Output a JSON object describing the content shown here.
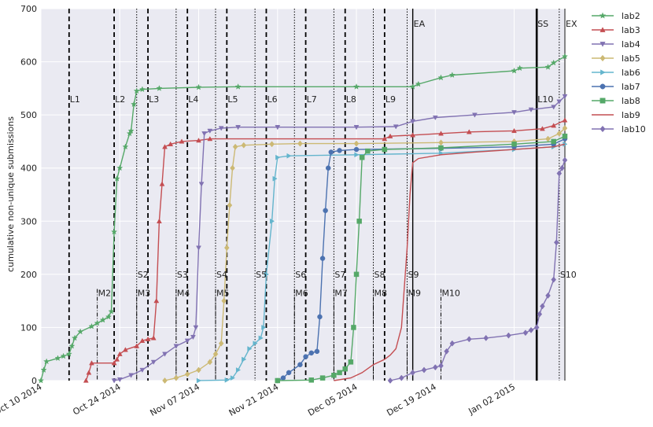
{
  "chart_data": {
    "type": "line",
    "ylabel": "cumulative non-unique submissions",
    "xlim": [
      "2014-10-10",
      "2015-01-11"
    ],
    "ylim": [
      0,
      700
    ],
    "x_ticks": [
      {
        "date": "2014-10-10",
        "label": "Oct 10 2014"
      },
      {
        "date": "2014-10-24",
        "label": "Oct 24 2014"
      },
      {
        "date": "2014-11-07",
        "label": "Nov 07 2014"
      },
      {
        "date": "2014-11-21",
        "label": "Nov 21 2014"
      },
      {
        "date": "2014-12-05",
        "label": "Dec 05 2014"
      },
      {
        "date": "2014-12-19",
        "label": "Dec 19 2014"
      },
      {
        "date": "2015-01-02",
        "label": "Jan 02 2015"
      }
    ],
    "y_ticks": [
      0,
      100,
      200,
      300,
      400,
      500,
      600,
      700
    ],
    "grid": true,
    "legend_position": "outside-right",
    "series": [
      {
        "name": "lab2",
        "color": "#55a868",
        "marker": "star",
        "points": [
          [
            "2014-10-10",
            0
          ],
          [
            "2014-10-10T12:00",
            20
          ],
          [
            "2014-10-11",
            36
          ],
          [
            "2014-10-13",
            42
          ],
          [
            "2014-10-14",
            46
          ],
          [
            "2014-10-15",
            50
          ],
          [
            "2014-10-15T12:00",
            65
          ],
          [
            "2014-10-16",
            80
          ],
          [
            "2014-10-17",
            92
          ],
          [
            "2014-10-19",
            102
          ],
          [
            "2014-10-20",
            108
          ],
          [
            "2014-10-21",
            114
          ],
          [
            "2014-10-22",
            120
          ],
          [
            "2014-10-22T12:00",
            130
          ],
          [
            "2014-10-23",
            280
          ],
          [
            "2014-10-23T12:00",
            380
          ],
          [
            "2014-10-24",
            400
          ],
          [
            "2014-10-25",
            440
          ],
          [
            "2014-10-25T18:00",
            465
          ],
          [
            "2014-10-26",
            470
          ],
          [
            "2014-10-26T12:00",
            520
          ],
          [
            "2014-10-27",
            545
          ],
          [
            "2014-10-28",
            548
          ],
          [
            "2014-10-31",
            550
          ],
          [
            "2014-11-07",
            552
          ],
          [
            "2014-11-14",
            553
          ],
          [
            "2014-12-05",
            553
          ],
          [
            "2014-12-15",
            553
          ],
          [
            "2014-12-16",
            558
          ],
          [
            "2014-12-20",
            570
          ],
          [
            "2014-12-22",
            575
          ],
          [
            "2015-01-02",
            583
          ],
          [
            "2015-01-03",
            588
          ],
          [
            "2015-01-08",
            590
          ],
          [
            "2015-01-09",
            598
          ],
          [
            "2015-01-11",
            610
          ]
        ]
      },
      {
        "name": "lab3",
        "color": "#c44e52",
        "marker": "triangle-up",
        "points": [
          [
            "2014-10-18",
            0
          ],
          [
            "2014-10-18T12:00",
            15
          ],
          [
            "2014-10-19",
            33
          ],
          [
            "2014-10-23",
            33
          ],
          [
            "2014-10-23T12:00",
            40
          ],
          [
            "2014-10-24",
            50
          ],
          [
            "2014-10-25",
            58
          ],
          [
            "2014-10-27",
            65
          ],
          [
            "2014-10-28",
            75
          ],
          [
            "2014-10-29",
            78
          ],
          [
            "2014-10-30",
            80
          ],
          [
            "2014-10-30T12:00",
            150
          ],
          [
            "2014-10-31",
            300
          ],
          [
            "2014-10-31T12:00",
            370
          ],
          [
            "2014-11-01",
            440
          ],
          [
            "2014-11-02",
            445
          ],
          [
            "2014-11-04",
            450
          ],
          [
            "2014-11-07",
            452
          ],
          [
            "2014-11-09",
            455
          ],
          [
            "2014-12-10",
            455
          ],
          [
            "2014-12-11",
            460
          ],
          [
            "2014-12-15",
            462
          ],
          [
            "2014-12-20",
            465
          ],
          [
            "2014-12-25",
            468
          ],
          [
            "2015-01-02",
            470
          ],
          [
            "2015-01-07",
            474
          ],
          [
            "2015-01-09",
            480
          ],
          [
            "2015-01-11",
            490
          ]
        ]
      },
      {
        "name": "lab4",
        "color": "#8172b2",
        "marker": "triangle-down",
        "points": [
          [
            "2014-10-23",
            0
          ],
          [
            "2014-10-24",
            2
          ],
          [
            "2014-10-26",
            10
          ],
          [
            "2014-10-28",
            20
          ],
          [
            "2014-10-30",
            35
          ],
          [
            "2014-11-01",
            50
          ],
          [
            "2014-11-03",
            65
          ],
          [
            "2014-11-05",
            75
          ],
          [
            "2014-11-06",
            82
          ],
          [
            "2014-11-06T12:00",
            100
          ],
          [
            "2014-11-07",
            250
          ],
          [
            "2014-11-07T12:00",
            370
          ],
          [
            "2014-11-08",
            465
          ],
          [
            "2014-11-09",
            470
          ],
          [
            "2014-11-11",
            475
          ],
          [
            "2014-11-14",
            477
          ],
          [
            "2014-11-21",
            477
          ],
          [
            "2014-12-05",
            477
          ],
          [
            "2014-12-12",
            478
          ],
          [
            "2014-12-15",
            488
          ],
          [
            "2014-12-19",
            495
          ],
          [
            "2014-12-26",
            500
          ],
          [
            "2015-01-02",
            505
          ],
          [
            "2015-01-05",
            510
          ],
          [
            "2015-01-09",
            515
          ],
          [
            "2015-01-10",
            525
          ],
          [
            "2015-01-11",
            535
          ]
        ]
      },
      {
        "name": "lab5",
        "color": "#ccb974",
        "marker": "diamond",
        "points": [
          [
            "2014-11-01",
            0
          ],
          [
            "2014-11-03",
            5
          ],
          [
            "2014-11-05",
            12
          ],
          [
            "2014-11-07",
            20
          ],
          [
            "2014-11-09",
            35
          ],
          [
            "2014-11-10",
            50
          ],
          [
            "2014-11-11",
            70
          ],
          [
            "2014-11-11T12:00",
            150
          ],
          [
            "2014-11-12",
            250
          ],
          [
            "2014-11-12T12:00",
            330
          ],
          [
            "2014-11-13",
            400
          ],
          [
            "2014-11-13T12:00",
            440
          ],
          [
            "2014-11-15",
            443
          ],
          [
            "2014-11-20",
            445
          ],
          [
            "2014-11-25",
            446
          ],
          [
            "2014-12-05",
            446
          ],
          [
            "2014-12-20",
            448
          ],
          [
            "2015-01-02",
            450
          ],
          [
            "2015-01-08",
            455
          ],
          [
            "2015-01-10",
            465
          ],
          [
            "2015-01-11",
            475
          ]
        ]
      },
      {
        "name": "lab6",
        "color": "#64b5cd",
        "marker": "triangle-right",
        "points": [
          [
            "2014-11-07",
            0
          ],
          [
            "2014-11-12",
            1
          ],
          [
            "2014-11-13",
            5
          ],
          [
            "2014-11-14",
            20
          ],
          [
            "2014-11-15",
            40
          ],
          [
            "2014-11-16",
            60
          ],
          [
            "2014-11-17",
            70
          ],
          [
            "2014-11-18",
            80
          ],
          [
            "2014-11-18T12:00",
            100
          ],
          [
            "2014-11-19",
            200
          ],
          [
            "2014-11-20",
            300
          ],
          [
            "2014-11-20T12:00",
            380
          ],
          [
            "2014-11-21",
            420
          ],
          [
            "2014-11-23",
            423
          ],
          [
            "2014-12-05",
            425
          ],
          [
            "2014-12-20",
            428
          ],
          [
            "2015-01-02",
            435
          ],
          [
            "2015-01-09",
            440
          ],
          [
            "2015-01-11",
            445
          ]
        ]
      },
      {
        "name": "lab7",
        "color": "#4c72b0",
        "marker": "circle",
        "points": [
          [
            "2014-11-21",
            0
          ],
          [
            "2014-11-22",
            5
          ],
          [
            "2014-11-23",
            15
          ],
          [
            "2014-11-25",
            30
          ],
          [
            "2014-11-26",
            45
          ],
          [
            "2014-11-27",
            52
          ],
          [
            "2014-11-28",
            55
          ],
          [
            "2014-11-28T12:00",
            120
          ],
          [
            "2014-11-29",
            230
          ],
          [
            "2014-11-29T12:00",
            320
          ],
          [
            "2014-11-30",
            400
          ],
          [
            "2014-11-30T12:00",
            430
          ],
          [
            "2014-12-02",
            433
          ],
          [
            "2014-12-05",
            435
          ],
          [
            "2014-12-20",
            437
          ],
          [
            "2015-01-02",
            440
          ],
          [
            "2015-01-09",
            445
          ],
          [
            "2015-01-11",
            455
          ]
        ]
      },
      {
        "name": "lab8",
        "color": "#55a868",
        "marker": "square",
        "points": [
          [
            "2014-11-21",
            0
          ],
          [
            "2014-11-27",
            1
          ],
          [
            "2014-11-29",
            5
          ],
          [
            "2014-12-01",
            10
          ],
          [
            "2014-12-02",
            15
          ],
          [
            "2014-12-03",
            22
          ],
          [
            "2014-12-04",
            35
          ],
          [
            "2014-12-04T12:00",
            100
          ],
          [
            "2014-12-05",
            200
          ],
          [
            "2014-12-05T12:00",
            300
          ],
          [
            "2014-12-06",
            420
          ],
          [
            "2014-12-07",
            432
          ],
          [
            "2014-12-10",
            435
          ],
          [
            "2014-12-20",
            438
          ],
          [
            "2015-01-02",
            445
          ],
          [
            "2015-01-09",
            450
          ],
          [
            "2015-01-11",
            460
          ]
        ]
      },
      {
        "name": "lab9",
        "color": "#c44e52",
        "marker": "none",
        "points": [
          [
            "2014-12-01",
            0
          ],
          [
            "2014-12-04",
            5
          ],
          [
            "2014-12-06",
            15
          ],
          [
            "2014-12-08",
            30
          ],
          [
            "2014-12-10",
            40
          ],
          [
            "2014-12-11",
            48
          ],
          [
            "2014-12-12",
            60
          ],
          [
            "2014-12-13",
            100
          ],
          [
            "2014-12-14",
            250
          ],
          [
            "2014-12-14T12:00",
            350
          ],
          [
            "2014-12-15",
            410
          ],
          [
            "2014-12-16",
            418
          ],
          [
            "2014-12-20",
            425
          ],
          [
            "2014-12-26",
            430
          ],
          [
            "2015-01-02",
            435
          ],
          [
            "2015-01-09",
            440
          ],
          [
            "2015-01-11",
            445
          ]
        ]
      },
      {
        "name": "lab10",
        "color": "#8172b2",
        "marker": "diamond",
        "points": [
          [
            "2014-12-11",
            0
          ],
          [
            "2014-12-13",
            5
          ],
          [
            "2014-12-15",
            15
          ],
          [
            "2014-12-17",
            20
          ],
          [
            "2014-12-19",
            25
          ],
          [
            "2014-12-20",
            28
          ],
          [
            "2014-12-21",
            55
          ],
          [
            "2014-12-22",
            70
          ],
          [
            "2014-12-25",
            78
          ],
          [
            "2014-12-28",
            80
          ],
          [
            "2015-01-01",
            85
          ],
          [
            "2015-01-04",
            90
          ],
          [
            "2015-01-05",
            95
          ],
          [
            "2015-01-06",
            100
          ],
          [
            "2015-01-06T12:00",
            125
          ],
          [
            "2015-01-07",
            140
          ],
          [
            "2015-01-08",
            160
          ],
          [
            "2015-01-09",
            190
          ],
          [
            "2015-01-09T12:00",
            260
          ],
          [
            "2015-01-10",
            390
          ],
          [
            "2015-01-10T12:00",
            400
          ],
          [
            "2015-01-11",
            415
          ]
        ]
      }
    ],
    "vlines": [
      {
        "date": "2014-10-15",
        "style": "dashed",
        "label": "L1",
        "y": 530
      },
      {
        "date": "2014-10-23",
        "style": "dashed",
        "label": "L2",
        "y": 530
      },
      {
        "date": "2014-10-29",
        "style": "dashed",
        "label": "L3",
        "y": 530
      },
      {
        "date": "2014-11-05",
        "style": "dashed",
        "label": "L4",
        "y": 530
      },
      {
        "date": "2014-11-12",
        "style": "dashed",
        "label": "L5",
        "y": 530
      },
      {
        "date": "2014-11-19",
        "style": "dashed",
        "label": "L6",
        "y": 530
      },
      {
        "date": "2014-11-26",
        "style": "dashed",
        "label": "L7",
        "y": 530
      },
      {
        "date": "2014-12-03",
        "style": "dashed",
        "label": "L8",
        "y": 530
      },
      {
        "date": "2014-12-10",
        "style": "dashed",
        "label": "L9",
        "y": 530
      },
      {
        "date": "2015-01-06",
        "style": "dashed",
        "label": "L10",
        "y": 530
      },
      {
        "date": "2014-10-27",
        "style": "dotted",
        "label": "S2",
        "y": 200
      },
      {
        "date": "2014-11-03",
        "style": "dotted",
        "label": "S3",
        "y": 200
      },
      {
        "date": "2014-11-10",
        "style": "dotted",
        "label": "S4",
        "y": 200
      },
      {
        "date": "2014-11-17",
        "style": "dotted",
        "label": "S5",
        "y": 200
      },
      {
        "date": "2014-11-24",
        "style": "dotted",
        "label": "S6",
        "y": 200
      },
      {
        "date": "2014-12-01",
        "style": "dotted",
        "label": "S7",
        "y": 200
      },
      {
        "date": "2014-12-08",
        "style": "dotted",
        "label": "S8",
        "y": 200
      },
      {
        "date": "2014-12-14",
        "style": "dotted",
        "label": "S9",
        "y": 200
      },
      {
        "date": "2015-01-10",
        "style": "dotted",
        "label": "S10",
        "y": 200
      },
      {
        "date": "2014-10-20",
        "style": "dashdot",
        "label": "M2",
        "y": 165
      },
      {
        "date": "2014-10-27",
        "style": "dashdot",
        "label": "M3",
        "y": 165
      },
      {
        "date": "2014-11-03",
        "style": "dashdot",
        "label": "M4",
        "y": 165
      },
      {
        "date": "2014-11-10",
        "style": "dashdot",
        "label": "M5",
        "y": 165
      },
      {
        "date": "2014-11-24",
        "style": "dashdot",
        "label": "M6",
        "y": 165
      },
      {
        "date": "2014-12-01",
        "style": "dashdot",
        "label": "M7",
        "y": 165
      },
      {
        "date": "2014-12-08",
        "style": "dashdot",
        "label": "M8",
        "y": 165
      },
      {
        "date": "2014-12-14",
        "style": "dashdot",
        "label": "M9",
        "y": 165
      },
      {
        "date": "2014-12-20",
        "style": "dashdot",
        "label": "M10",
        "y": 165
      },
      {
        "date": "2014-12-15",
        "style": "solid",
        "label": "EA",
        "y": 672
      },
      {
        "date": "2015-01-06",
        "style": "solid-thick",
        "label": "SS",
        "y": 672
      },
      {
        "date": "2015-01-11",
        "style": "solid-gray",
        "label": "EX",
        "y": 672
      }
    ]
  }
}
